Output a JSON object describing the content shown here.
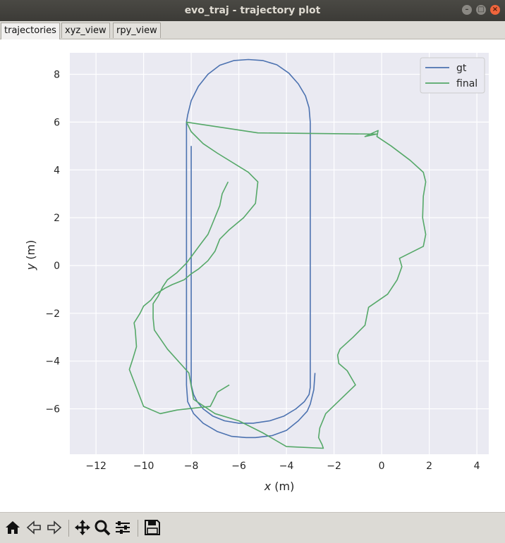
{
  "window": {
    "title": "evo_traj - trajectory plot"
  },
  "tabs": [
    {
      "label": "trajectories"
    },
    {
      "label": "xyz_view"
    },
    {
      "label": "rpy_view"
    }
  ],
  "toolbar": {
    "items": [
      "home-icon",
      "back-arrow-icon",
      "forward-arrow-icon",
      "pan-icon",
      "zoom-icon",
      "configure-subplots-icon",
      "save-icon"
    ]
  },
  "colors": {
    "gt": "#4c72b0",
    "final": "#55a868",
    "axes_bg": "#eaeaf2"
  },
  "chart_data": {
    "type": "line",
    "title": "",
    "xlabel_italic": "x",
    "xlabel_unit": " (m)",
    "ylabel_italic": "y",
    "ylabel_unit": " (m)",
    "xlim": [
      -13.1,
      4.5
    ],
    "ylim": [
      -7.9,
      8.9
    ],
    "xticks": [
      -12,
      -10,
      -8,
      -6,
      -4,
      -2,
      0,
      2,
      4
    ],
    "xtick_labels": [
      "−12",
      "−10",
      "−8",
      "−6",
      "−4",
      "−2",
      "0",
      "2",
      "4"
    ],
    "yticks": [
      -6,
      -4,
      -2,
      0,
      2,
      4,
      6,
      8
    ],
    "ytick_labels": [
      "−6",
      "−4",
      "−2",
      "0",
      "2",
      "4",
      "6",
      "8"
    ],
    "grid": true,
    "legend_position": "top-right",
    "series": [
      {
        "name": "gt",
        "color": "#4c72b0",
        "x": [
          -2.8,
          -2.85,
          -3,
          -3.13,
          -3.5,
          -4,
          -4.6,
          -5.3,
          -5.7,
          -6.3,
          -6.9,
          -7.5,
          -7.9,
          -8.15,
          -8.2,
          -8.2,
          -8.2,
          -8.2,
          -8.2,
          -8.2,
          -8.2,
          -8.2,
          -8.2,
          -8.15,
          -8.0,
          -7.7,
          -7.3,
          -6.8,
          -6.2,
          -5.6,
          -5.0,
          -4.4,
          -3.9,
          -3.5,
          -3.2,
          -3.05,
          -3.0,
          -3.0,
          -3.0,
          -3.0,
          -3.0,
          -3.0,
          -3.0,
          -3.0,
          -3.0,
          -3.05,
          -3.25,
          -3.6,
          -4.1,
          -4.7,
          -5.4,
          -6.0,
          -6.6,
          -7.1,
          -7.5,
          -7.75,
          -7.9,
          -8.0,
          -8.0,
          -8.0,
          -8.0,
          -8.0,
          -8.0,
          -8.0,
          -8.0,
          -8.0
        ],
        "y": [
          -4.5,
          -5.2,
          -5.8,
          -6.1,
          -6.5,
          -6.9,
          -7.12,
          -7.2,
          -7.2,
          -7.15,
          -6.95,
          -6.6,
          -6.2,
          -5.7,
          -5.0,
          -4.0,
          -2.0,
          0.0,
          2.0,
          4.0,
          5.0,
          5.6,
          6.0,
          6.3,
          6.9,
          7.5,
          8.0,
          8.38,
          8.58,
          8.62,
          8.58,
          8.4,
          8.05,
          7.6,
          7.1,
          6.6,
          6.0,
          4.0,
          2.0,
          0.0,
          -2.0,
          -4.0,
          -4.5,
          -4.9,
          -5.1,
          -5.4,
          -5.7,
          -6.0,
          -6.3,
          -6.5,
          -6.6,
          -6.6,
          -6.5,
          -6.3,
          -6.0,
          -5.7,
          -5.4,
          -5.0,
          -4.5,
          -4.0,
          -2.0,
          0.0,
          2.0,
          4.0,
          4.5,
          5.0
        ]
      },
      {
        "name": "final",
        "color": "#55a868",
        "x": [
          -6.4,
          -6.9,
          -7.0,
          -7.2,
          -7.7,
          -8.6,
          -9.3,
          -10.0,
          -10.6,
          -10.45,
          -10.3,
          -10.35,
          -10.4,
          -10.15,
          -10.0,
          -9.7,
          -9.5,
          -9.1,
          -8.8,
          -8.3,
          -8.0,
          -7.7,
          -7.3,
          -7.0,
          -6.8,
          -6.4,
          -5.8,
          -5.3,
          -5.2,
          -5.6,
          -6.9,
          -7.5,
          -8.0,
          -8.2,
          -5.2,
          -0.2,
          -0.7,
          -0.15,
          -0.2,
          0.4,
          1.2,
          1.75,
          1.85,
          1.75,
          1.72,
          1.85,
          1.75,
          0.75,
          0.85,
          0.65,
          0.25,
          -0.55,
          -0.7,
          -1.2,
          -1.75,
          -1.85,
          -1.8,
          -1.45,
          -1.1,
          -2.35,
          -2.6,
          -2.65,
          -2.5,
          -2.45,
          -4.0,
          -5.0,
          -6.0,
          -7.0,
          -7.6,
          -7.9,
          -8.1,
          -9.0,
          -9.55,
          -9.6,
          -9.6,
          -9.4,
          -9.2,
          -9.0,
          -8.6,
          -8.2,
          -7.9,
          -7.6,
          -7.3,
          -7.15,
          -6.8,
          -6.7,
          -6.45
        ],
        "y": [
          -5.0,
          -5.3,
          -5.5,
          -5.9,
          -5.95,
          -6.05,
          -6.2,
          -5.9,
          -4.35,
          -3.9,
          -3.4,
          -2.7,
          -2.4,
          -2.0,
          -1.7,
          -1.45,
          -1.2,
          -0.95,
          -0.8,
          -0.6,
          -0.35,
          -0.15,
          0.2,
          0.6,
          1.1,
          1.5,
          2.0,
          2.6,
          3.5,
          3.9,
          4.7,
          5.1,
          5.6,
          6.0,
          5.55,
          5.5,
          5.4,
          5.65,
          5.4,
          5.0,
          4.4,
          3.9,
          3.5,
          2.9,
          2.0,
          1.3,
          0.8,
          0.3,
          -0.05,
          -0.6,
          -1.2,
          -1.75,
          -2.5,
          -3.0,
          -3.5,
          -3.75,
          -4.1,
          -4.4,
          -5.0,
          -6.2,
          -6.8,
          -7.2,
          -7.5,
          -7.65,
          -7.58,
          -7.0,
          -6.5,
          -6.2,
          -5.8,
          -5.6,
          -4.5,
          -3.5,
          -2.7,
          -2.2,
          -1.6,
          -1.3,
          -0.9,
          -0.6,
          -0.3,
          0.1,
          0.5,
          0.9,
          1.3,
          1.65,
          2.5,
          3.0,
          3.5
        ]
      }
    ]
  }
}
